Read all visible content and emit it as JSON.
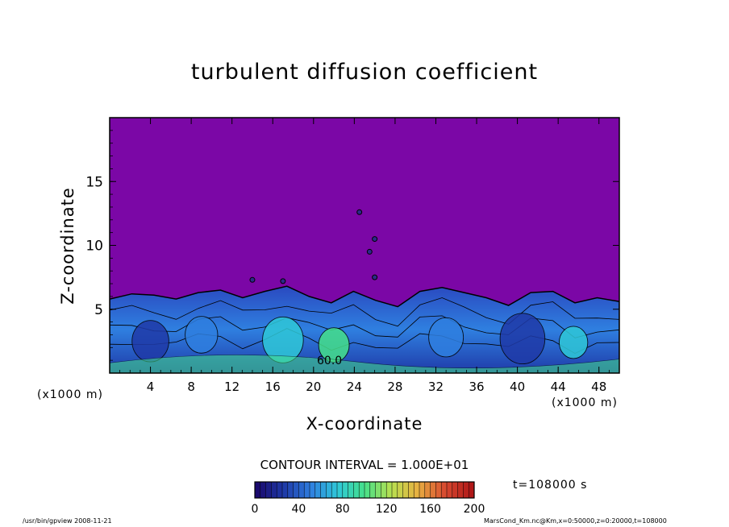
{
  "chart_data": {
    "type": "heatmap",
    "title": "turbulent diffusion coefficient",
    "xlabel": "X-coordinate",
    "ylabel": "Z-coordinate",
    "x_unit_label": "(x1000 m)",
    "xlim": [
      0,
      50
    ],
    "ylim": [
      0,
      20
    ],
    "x_ticks": [
      "4",
      "8",
      "12",
      "16",
      "20",
      "24",
      "28",
      "32",
      "36",
      "40",
      "44",
      "48"
    ],
    "y_ticks": [
      "5",
      "10",
      "15"
    ],
    "contour_interval": "CONTOUR INTERVAL = 1.000E+01",
    "contour_labels": [
      "60.0"
    ],
    "colorbar": {
      "range": [
        0,
        200
      ],
      "ticks": [
        "0",
        "40",
        "80",
        "120",
        "160",
        "200"
      ],
      "colors": [
        "#1a0a6e",
        "#1f3aa8",
        "#2f7fe0",
        "#2fc8d8",
        "#45e08a",
        "#b8e050",
        "#e8b040",
        "#d84a30",
        "#b01818"
      ]
    },
    "background_color": "#7b07a6",
    "boundary_layer_top": [
      5.8,
      6.2,
      6.1,
      5.8,
      6.3,
      6.5,
      5.9,
      6.4,
      6.8,
      6.0,
      5.5,
      6.4,
      5.7,
      5.2,
      6.4,
      6.7,
      6.3,
      5.9,
      5.3,
      6.3,
      6.4,
      5.5,
      5.9,
      5.6
    ],
    "time_label": "t=108000  s",
    "footer_left": "/usr/bin/gpview   2008-11-21",
    "footer_right": "MarsCond_Km.nc@Km,x=0:50000,z=0:20000,t=108000"
  }
}
